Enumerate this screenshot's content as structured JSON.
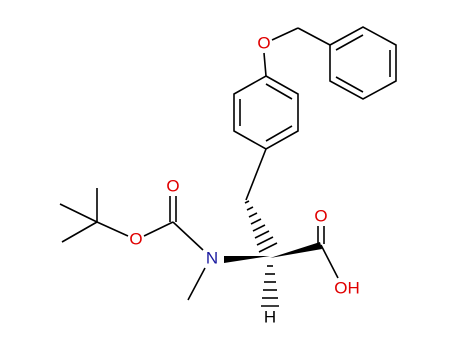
{
  "atoms": {
    "ether_oxygen": "O",
    "carbamate_carbonyl_oxygen": "O",
    "carbamate_ester_oxygen": "O",
    "nitrogen": "N",
    "acid_carbonyl_oxygen": "O",
    "hydroxyl": "OH",
    "hydrogen": "H"
  }
}
